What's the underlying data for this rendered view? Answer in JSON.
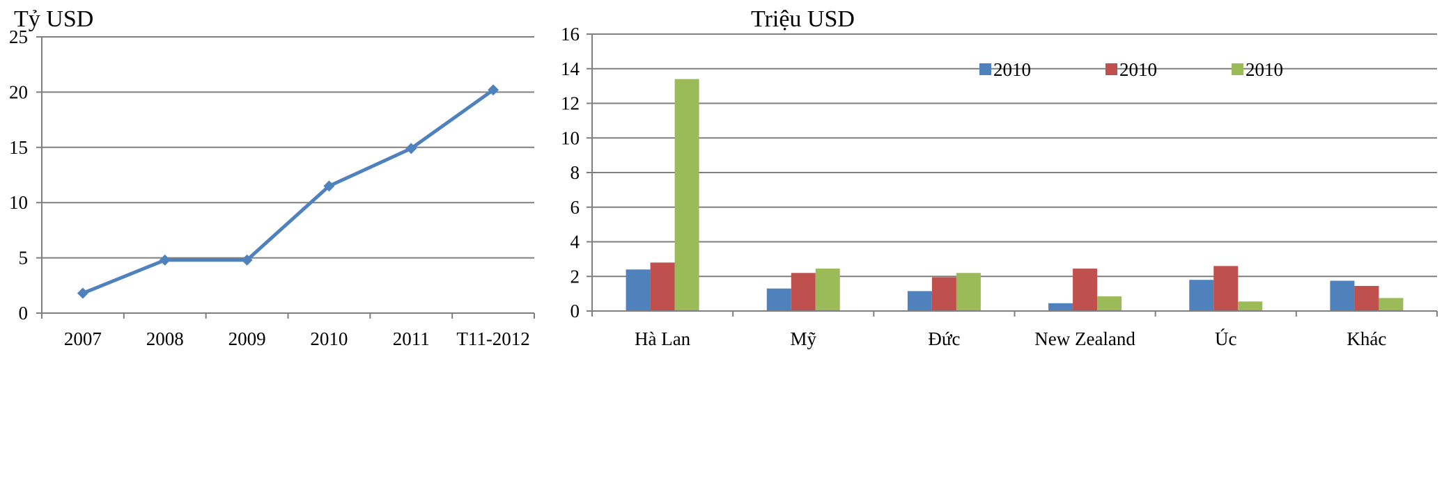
{
  "chart_data": [
    {
      "type": "line",
      "ylabel": "Tỷ USD",
      "categories": [
        "2007",
        "2008",
        "2009",
        "2010",
        "2011",
        "T11-2012"
      ],
      "yticks": [
        "0",
        "5",
        "10",
        "15",
        "20",
        "25"
      ],
      "ylim": [
        0,
        25
      ],
      "series": [
        {
          "values": [
            1.8,
            4.8,
            4.8,
            11.5,
            14.9,
            20.2
          ],
          "color": "#4f81bd"
        }
      ],
      "marker": "diamond",
      "grid": true
    },
    {
      "type": "bar",
      "ylabel": "Triệu USD",
      "categories": [
        "Hà Lan",
        "Mỹ",
        "Đức",
        "New Zealand",
        "Úc",
        "Khác"
      ],
      "yticks": [
        "0",
        "2",
        "4",
        "6",
        "8",
        "10",
        "12",
        "14",
        "16"
      ],
      "ylim": [
        0,
        16
      ],
      "series": [
        {
          "name": "2010",
          "values": [
            2.4,
            1.3,
            1.15,
            0.45,
            1.8,
            1.75
          ],
          "color": "#4f81bd"
        },
        {
          "name": "2010",
          "values": [
            2.8,
            2.2,
            1.95,
            2.45,
            2.6,
            1.45
          ],
          "color": "#c0504d"
        },
        {
          "name": "2010",
          "values": [
            13.4,
            2.45,
            2.2,
            0.85,
            0.55,
            0.75
          ],
          "color": "#9bbb59"
        }
      ],
      "legend": "top",
      "grid": true
    }
  ]
}
